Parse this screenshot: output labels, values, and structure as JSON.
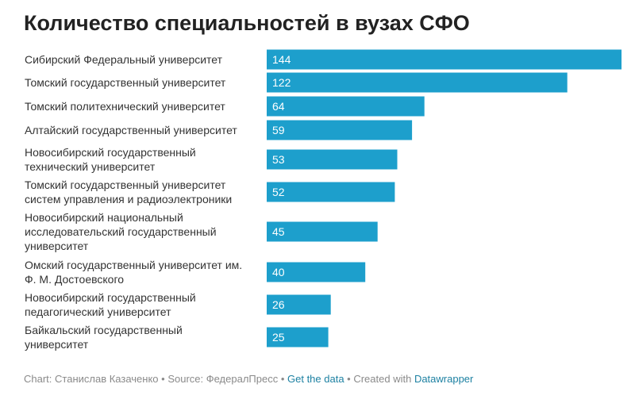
{
  "chart_data": {
    "type": "bar",
    "orientation": "horizontal",
    "title": "Количество специальностей в вузах СФО",
    "categories": [
      [
        "Сибирский Федеральный университет"
      ],
      [
        "Томский государственный университет"
      ],
      [
        "Томский политехнический университет"
      ],
      [
        "Алтайский государственный университет"
      ],
      [
        "Новосибирский государственный",
        "технический университет"
      ],
      [
        "Томский государственный университет",
        "систем управления и радиоэлектроники"
      ],
      [
        "Новосибирский национальный",
        "исследовательский государственный",
        "университет"
      ],
      [
        "Омский государственный университет им.",
        "Ф. М. Достоевского"
      ],
      [
        "Новосибирский государственный",
        "педагогический университет"
      ],
      [
        "Байкальский государственный",
        "университет"
      ]
    ],
    "values": [
      144,
      122,
      64,
      59,
      53,
      52,
      45,
      40,
      26,
      25
    ],
    "xlim": [
      0,
      144
    ],
    "bar_color": "#1d9fcc",
    "grid": false,
    "legend": "none"
  },
  "footer": {
    "chart_prefix": "Chart: Станислав Казаченко",
    "sep1": " • ",
    "source": "Source: ФедералПресс",
    "sep2": " • ",
    "get_data": "Get the data",
    "sep3": " • ",
    "created_with": "Created with ",
    "datawrapper": "Datawrapper"
  },
  "colors": {
    "title": "#222222",
    "label": "#333333",
    "value_text": "#ffffff",
    "footer": "#8a8a8a",
    "footer_link": "#1d81a2"
  }
}
